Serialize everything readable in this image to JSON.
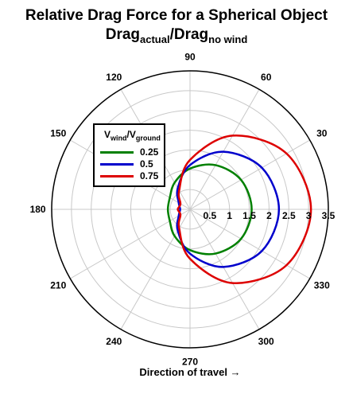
{
  "title": {
    "line1": "Relative Drag Force for a Spherical Object",
    "line2_main": "Drag",
    "line2_sub1": "actual",
    "line2_sep": "/Drag",
    "line2_sub2": "no wind"
  },
  "x_caption": "Direction of travel →",
  "legend": {
    "title_main": "V",
    "title_sub1": "wind",
    "title_sep": "/V",
    "title_sub2": "ground"
  },
  "colors": {
    "series": [
      "#008000",
      "#0000cc",
      "#dd0000"
    ],
    "grid": "#c8c8c8",
    "axis": "#000000"
  },
  "chart_data": {
    "type": "line",
    "coordinate_system": "polar",
    "angular_ticks_deg": [
      0,
      30,
      60,
      90,
      120,
      150,
      180,
      210,
      240,
      270,
      300,
      330
    ],
    "angular_tick_labels": [
      "",
      "30",
      "60",
      "90",
      "120",
      "150",
      "180",
      "210",
      "240",
      "270",
      "300",
      "330"
    ],
    "radial_ticks": [
      0.5,
      1,
      1.5,
      2,
      2.5,
      3,
      3.5
    ],
    "radial_tick_labels": [
      "0.5",
      "1",
      "1.5",
      "2",
      "2.5",
      "3",
      "3.5"
    ],
    "rlim": [
      0,
      3.5
    ],
    "grid": true,
    "legend_position": "top-left",
    "series": [
      {
        "name": "0.25",
        "theta_deg": [
          0,
          30,
          60,
          90,
          120,
          150,
          180,
          210,
          240,
          270,
          300,
          330
        ],
        "r": [
          1.56,
          1.49,
          1.29,
          1.03,
          0.78,
          0.59,
          0.56,
          0.59,
          0.78,
          1.03,
          1.29,
          1.49
        ]
      },
      {
        "name": "0.5",
        "theta_deg": [
          0,
          30,
          60,
          90,
          120,
          150,
          180,
          210,
          240,
          270,
          300,
          330
        ],
        "r": [
          2.25,
          2.1,
          1.68,
          1.12,
          0.62,
          0.33,
          0.25,
          0.33,
          0.62,
          1.12,
          1.68,
          2.1
        ]
      },
      {
        "name": "0.75",
        "theta_deg": [
          0,
          30,
          60,
          90,
          120,
          150,
          180,
          210,
          240,
          270,
          300,
          330
        ],
        "r": [
          3.06,
          2.82,
          2.15,
          1.25,
          0.55,
          0.28,
          0.31,
          0.28,
          0.55,
          1.25,
          2.15,
          2.82
        ]
      }
    ]
  }
}
